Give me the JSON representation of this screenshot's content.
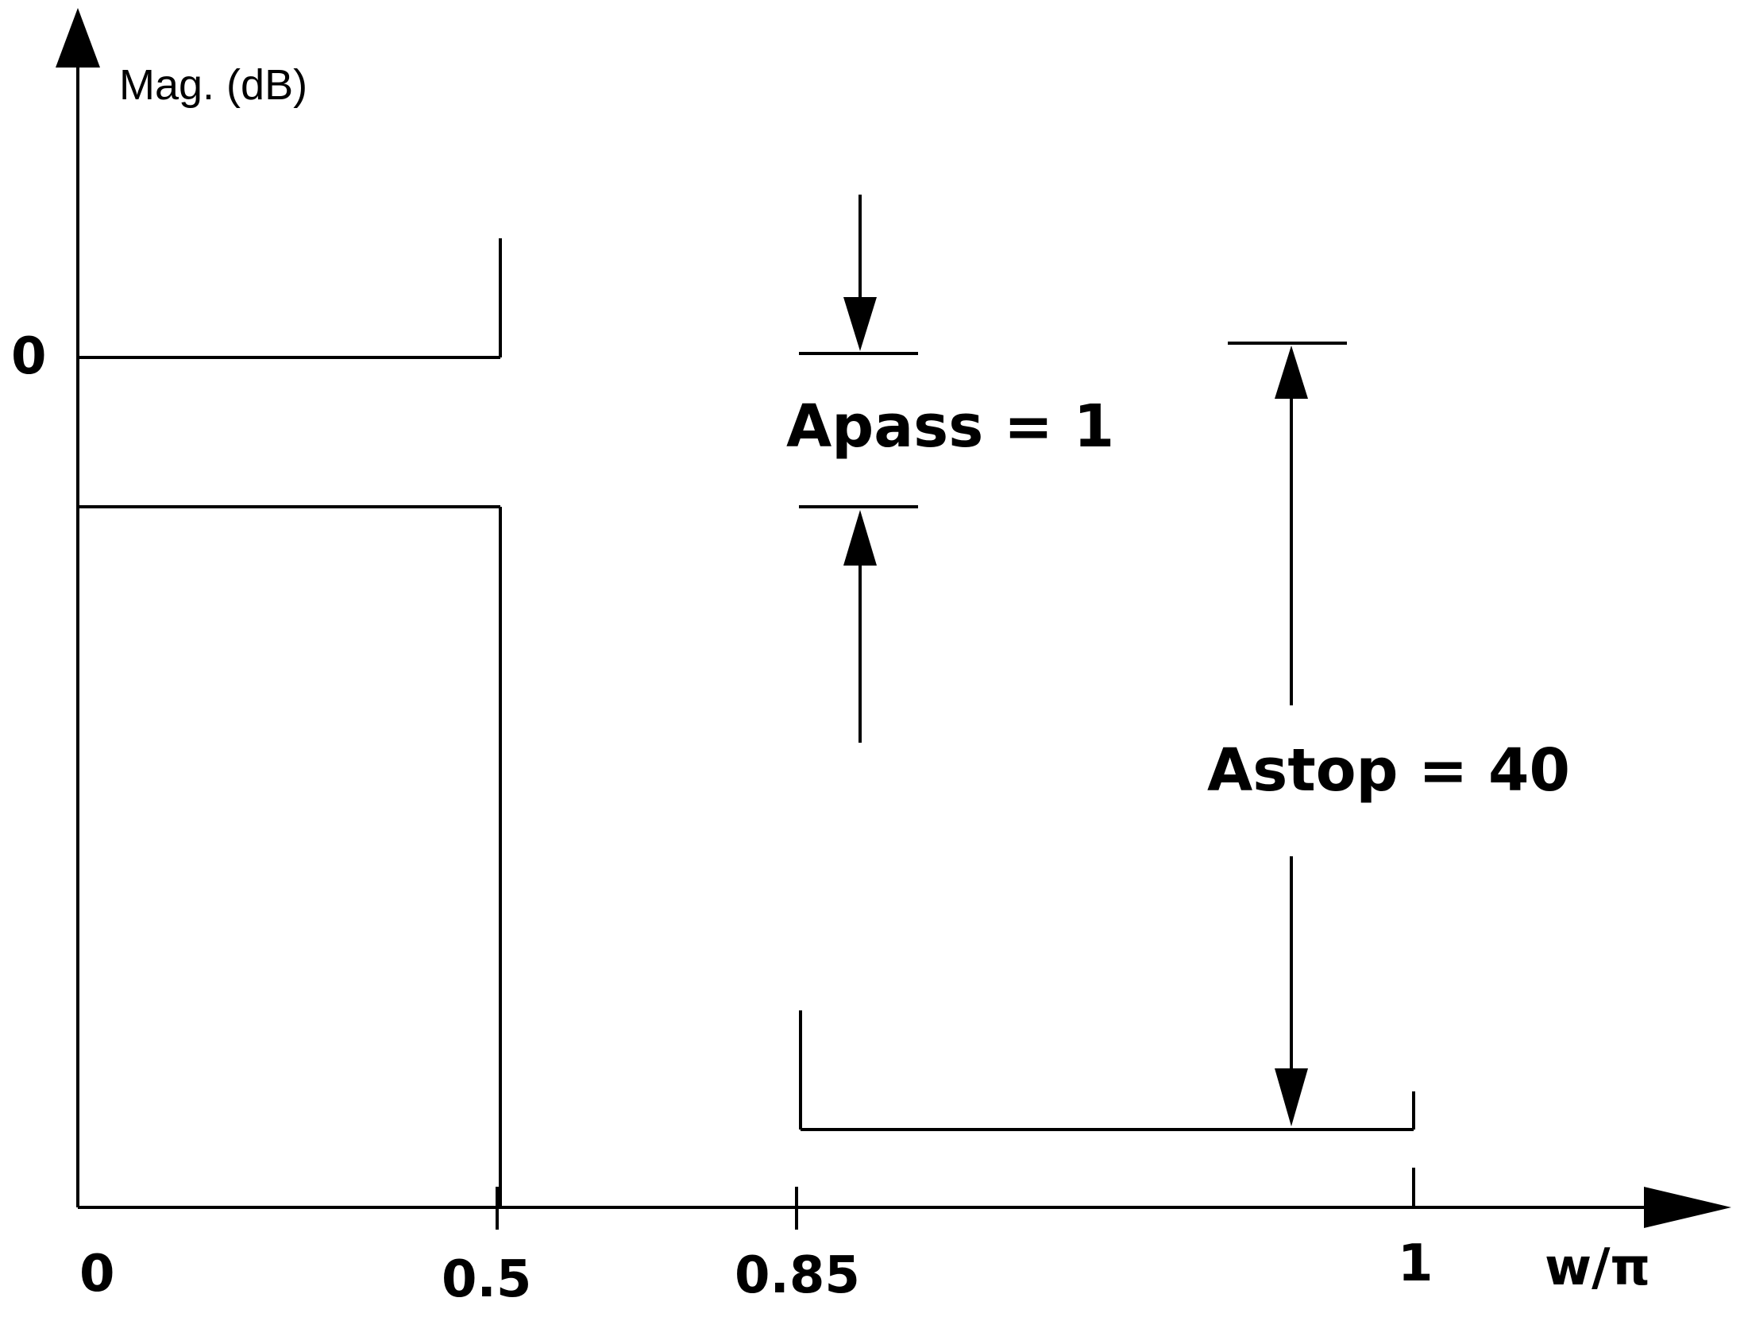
{
  "axes": {
    "y_label": "Mag. (dB)",
    "x_label": "w/π",
    "y_tick_zero": "0",
    "x_ticks": [
      "0",
      "0.5",
      "0.85",
      "1"
    ]
  },
  "spec": {
    "passband_edge": 0.5,
    "stopband_edge": 0.85,
    "apass_label": "Apass = 1",
    "astop_label": "Astop = 40"
  },
  "colors": {
    "ink": "#000000",
    "background": "#ffffff"
  }
}
